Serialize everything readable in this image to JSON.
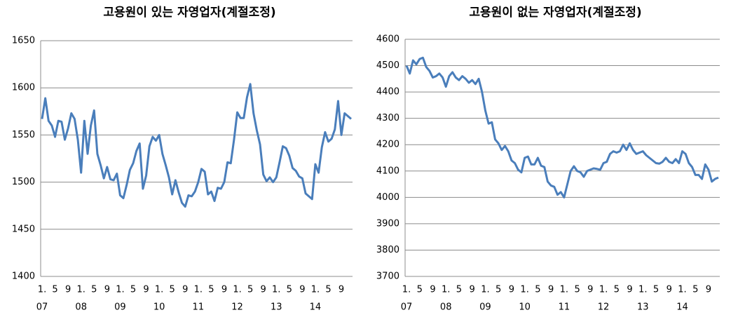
{
  "chart_data": [
    {
      "type": "line",
      "title": "고용원이 있는 자영업자(계절조정)",
      "categories": [
        "1.",
        null,
        null,
        null,
        "5",
        null,
        null,
        null,
        "9",
        null,
        null,
        null,
        "1.",
        null,
        null,
        null,
        "5",
        null,
        null,
        null,
        "9",
        null,
        null,
        null,
        "1.",
        null,
        null,
        null,
        "5",
        null,
        null,
        null,
        "9",
        null,
        null,
        null,
        "1.",
        null,
        null,
        null,
        "5",
        null,
        null,
        null,
        "9",
        null,
        null,
        null,
        "1.",
        null,
        null,
        null,
        "5",
        null,
        null,
        null,
        "9",
        null,
        null,
        null,
        "1.",
        null,
        null,
        null,
        "5",
        null,
        null,
        null,
        "9",
        null,
        null,
        null,
        "1.",
        null,
        null,
        null,
        "5",
        null,
        null,
        null,
        "9",
        null,
        null,
        null,
        "1.",
        null,
        null,
        null,
        "5",
        null,
        null,
        null,
        "9",
        null,
        null,
        null
      ],
      "year_labels": [
        "07",
        "08",
        "09",
        "10",
        "11",
        "12",
        "13",
        "14"
      ],
      "values": [
        1567,
        1589,
        1565,
        1560,
        1548,
        1565,
        1564,
        1545,
        1557,
        1573,
        1567,
        1545,
        1510,
        1565,
        1530,
        1560,
        1576,
        1530,
        1518,
        1504,
        1516,
        1503,
        1502,
        1509,
        1486,
        1483,
        1497,
        1513,
        1520,
        1533,
        1541,
        1493,
        1507,
        1538,
        1548,
        1544,
        1550,
        1530,
        1518,
        1505,
        1487,
        1502,
        1489,
        1478,
        1474,
        1486,
        1485,
        1490,
        1500,
        1514,
        1511,
        1487,
        1490,
        1480,
        1494,
        1493,
        1500,
        1521,
        1520,
        1545,
        1574,
        1568,
        1568,
        1590,
        1604,
        1573,
        1555,
        1540,
        1508,
        1501,
        1505,
        1500,
        1505,
        1521,
        1538,
        1536,
        1528,
        1515,
        1512,
        1506,
        1504,
        1488,
        1485,
        1482,
        1519,
        1510,
        1537,
        1553,
        1543,
        1546,
        1556,
        1586,
        1550,
        1573,
        1570,
        1567
      ],
      "color": "#4a7ebb",
      "ylim": [
        1400,
        1650
      ],
      "yticks": [
        1400,
        1450,
        1500,
        1550,
        1600,
        1650
      ],
      "grid": true
    },
    {
      "type": "line",
      "title": "고용원이 없는 자영업자(계절조정)",
      "categories": [
        "1.",
        null,
        null,
        null,
        "5",
        null,
        null,
        null,
        "9",
        null,
        null,
        null,
        "1.",
        null,
        null,
        null,
        "5",
        null,
        null,
        null,
        "9",
        null,
        null,
        null,
        "1.",
        null,
        null,
        null,
        "5",
        null,
        null,
        null,
        "9",
        null,
        null,
        null,
        "1.",
        null,
        null,
        null,
        "5",
        null,
        null,
        null,
        "9",
        null,
        null,
        null,
        "1.",
        null,
        null,
        null,
        "5",
        null,
        null,
        null,
        "9",
        null,
        null,
        null,
        "1.",
        null,
        null,
        null,
        "5",
        null,
        null,
        null,
        "9",
        null,
        null,
        null,
        "1.",
        null,
        null,
        null,
        "5",
        null,
        null,
        null,
        "9",
        null,
        null,
        null,
        "1.",
        null,
        null,
        null,
        "5",
        null,
        null,
        null,
        "9",
        null,
        null,
        null
      ],
      "year_labels": [
        "07",
        "08",
        "09",
        "10",
        "11",
        "12",
        "13",
        "14"
      ],
      "values": [
        4500,
        4470,
        4520,
        4505,
        4525,
        4530,
        4495,
        4480,
        4455,
        4460,
        4470,
        4455,
        4420,
        4460,
        4475,
        4455,
        4445,
        4460,
        4450,
        4435,
        4445,
        4430,
        4450,
        4400,
        4330,
        4280,
        4285,
        4220,
        4205,
        4180,
        4195,
        4175,
        4140,
        4130,
        4105,
        4095,
        4150,
        4155,
        4125,
        4125,
        4150,
        4120,
        4115,
        4060,
        4045,
        4040,
        4010,
        4020,
        4000,
        4050,
        4100,
        4118,
        4100,
        4095,
        4078,
        4100,
        4105,
        4110,
        4108,
        4105,
        4130,
        4135,
        4165,
        4175,
        4170,
        4175,
        4200,
        4180,
        4205,
        4180,
        4165,
        4170,
        4175,
        4160,
        4150,
        4140,
        4130,
        4128,
        4135,
        4150,
        4135,
        4130,
        4145,
        4130,
        4175,
        4165,
        4130,
        4115,
        4085,
        4085,
        4070,
        4125,
        4105,
        4060,
        4070,
        4075
      ],
      "color": "#4a7ebb",
      "ylim": [
        3700,
        4600
      ],
      "yticks": [
        3700,
        3800,
        3900,
        4000,
        4100,
        4200,
        4300,
        4400,
        4500,
        4600
      ],
      "grid": true
    }
  ]
}
